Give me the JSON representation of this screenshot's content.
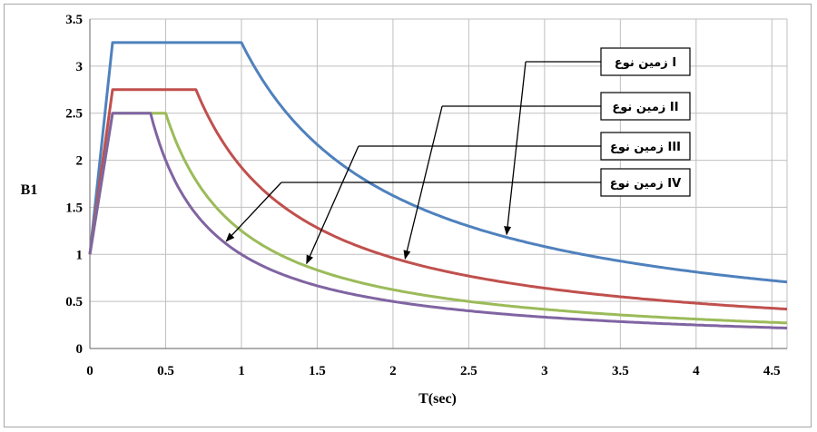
{
  "chart_data": {
    "type": "line",
    "title": "",
    "xlabel": "T(sec)",
    "ylabel": "B1",
    "xlim": [
      0,
      4.6
    ],
    "ylim": [
      0,
      3.5
    ],
    "xticks": [
      0,
      0.5,
      1,
      1.5,
      2,
      2.5,
      3,
      3.5,
      4,
      4.5
    ],
    "xtick_labels": [
      "0",
      "0.5",
      "1",
      "1.5",
      "2",
      "2.5",
      "3",
      "3.5",
      "4",
      "4.5"
    ],
    "yticks": [
      0,
      0.5,
      1,
      1.5,
      2,
      2.5,
      3,
      3.5
    ],
    "ytick_labels": [
      "0",
      "0.5",
      "1",
      "1.5",
      "2",
      "2.5",
      "3",
      "3.5"
    ],
    "grid": true,
    "legend_position": "right-top",
    "series": [
      {
        "name": "زمین نوع I",
        "color": "#4f81bd",
        "T0": 0.15,
        "Ts": 1.0,
        "S": 3.25,
        "x": [
          0,
          0.15,
          1.0,
          1.2,
          1.4,
          1.6,
          1.8,
          2.0,
          2.5,
          3.0,
          3.5,
          4.0,
          4.6
        ],
        "values": [
          1.0,
          3.25,
          3.25,
          2.71,
          2.32,
          2.03,
          1.81,
          1.63,
          1.3,
          1.08,
          0.93,
          0.81,
          0.71
        ]
      },
      {
        "name": "زمین نوع II",
        "color": "#c0504d",
        "T0": 0.15,
        "Ts": 0.7,
        "S": 2.75,
        "x": [
          0,
          0.15,
          0.7,
          1.0,
          1.5,
          2.0,
          2.5,
          3.0,
          3.5,
          4.0,
          4.6
        ],
        "values": [
          1.0,
          2.75,
          2.75,
          1.93,
          1.28,
          0.96,
          0.77,
          0.64,
          0.55,
          0.48,
          0.42
        ]
      },
      {
        "name": "زمین نوع III",
        "color": "#9bbb59",
        "T0": 0.15,
        "Ts": 0.5,
        "S": 2.5,
        "x": [
          0,
          0.15,
          0.5,
          1.0,
          1.5,
          2.0,
          2.5,
          3.0,
          3.5,
          4.0,
          4.6
        ],
        "values": [
          1.0,
          2.5,
          2.5,
          1.25,
          0.83,
          0.63,
          0.5,
          0.42,
          0.36,
          0.31,
          0.27
        ]
      },
      {
        "name": "زمین نوع IV",
        "color": "#8064a2",
        "T0": 0.15,
        "Ts": 0.4,
        "S": 2.5,
        "x": [
          0,
          0.15,
          0.4,
          1.0,
          1.5,
          2.0,
          2.5,
          3.0,
          3.5,
          4.0,
          4.6
        ],
        "values": [
          1.0,
          2.5,
          2.5,
          1.0,
          0.67,
          0.5,
          0.4,
          0.33,
          0.29,
          0.25,
          0.22
        ]
      }
    ],
    "annotations": [
      {
        "label": "زمین نوع I",
        "series": 0,
        "arrow_target_x": 2.75
      },
      {
        "label": "زمین نوع II",
        "series": 1,
        "arrow_target_x": 2.08
      },
      {
        "label": "زمین نوع III",
        "series": 2,
        "arrow_target_x": 1.43
      },
      {
        "label": "زمین نوع IV",
        "series": 3,
        "arrow_target_x": 0.9
      }
    ]
  }
}
